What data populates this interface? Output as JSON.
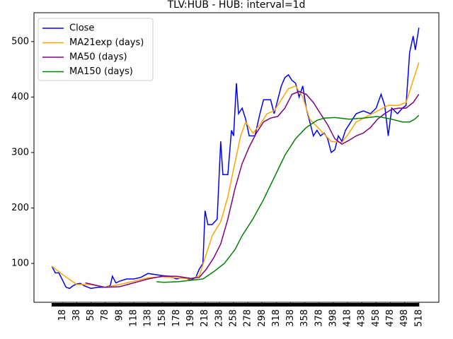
{
  "chart_data": {
    "type": "line",
    "title": "TLV:HUB - HUB: interval=1d",
    "xlim": [
      -22,
      546
    ],
    "ylim": [
      30,
      552
    ],
    "xticks": [
      18,
      38,
      58,
      78,
      98,
      118,
      138,
      158,
      178,
      198,
      218,
      238,
      258,
      278,
      298,
      318,
      338,
      358,
      378,
      398,
      418,
      438,
      458,
      478,
      498,
      518
    ],
    "yticks": [
      100,
      200,
      300,
      400,
      500
    ],
    "grid": false,
    "legend": "upper left",
    "series": [
      {
        "name": "Close",
        "color": "#0000ff",
        "x": [
          3,
          8,
          13,
          18,
          23,
          28,
          33,
          38,
          43,
          48,
          58,
          68,
          78,
          85,
          88,
          93,
          98,
          108,
          118,
          128,
          138,
          148,
          158,
          168,
          178,
          188,
          198,
          205,
          210,
          215,
          218,
          222,
          228,
          235,
          240,
          243,
          250,
          255,
          258,
          262,
          265,
          270,
          275,
          280,
          288,
          295,
          300,
          310,
          315,
          320,
          325,
          330,
          335,
          340,
          345,
          350,
          355,
          360,
          365,
          370,
          375,
          380,
          385,
          390,
          395,
          400,
          405,
          410,
          415,
          425,
          430,
          440,
          450,
          458,
          465,
          470,
          475,
          480,
          488,
          495,
          500,
          505,
          510,
          513,
          518
        ],
        "values": [
          95,
          83,
          83,
          70,
          57,
          55,
          60,
          63,
          64,
          60,
          55,
          57,
          57,
          60,
          77,
          65,
          68,
          72,
          72,
          75,
          82,
          80,
          78,
          77,
          72,
          75,
          70,
          75,
          90,
          100,
          195,
          170,
          170,
          180,
          320,
          260,
          260,
          340,
          330,
          425,
          370,
          380,
          360,
          330,
          330,
          370,
          395,
          395,
          370,
          395,
          420,
          435,
          440,
          430,
          425,
          400,
          420,
          380,
          355,
          330,
          340,
          330,
          335,
          325,
          300,
          305,
          330,
          320,
          340,
          360,
          370,
          375,
          370,
          380,
          405,
          385,
          330,
          380,
          370,
          380,
          385,
          480,
          510,
          485,
          525
        ]
      },
      {
        "name": "MA21exp (days)",
        "color": "#ffa500",
        "x": [
          3,
          18,
          38,
          58,
          78,
          98,
          118,
          138,
          158,
          178,
          198,
          210,
          218,
          228,
          240,
          250,
          258,
          268,
          275,
          285,
          295,
          305,
          315,
          325,
          335,
          345,
          355,
          365,
          380,
          395,
          410,
          420,
          430,
          445,
          460,
          475,
          490,
          500,
          510,
          518
        ],
        "values": [
          95,
          80,
          62,
          62,
          57,
          62,
          68,
          74,
          76,
          74,
          72,
          78,
          110,
          150,
          175,
          220,
          270,
          330,
          355,
          335,
          350,
          370,
          375,
          395,
          415,
          420,
          400,
          360,
          340,
          320,
          318,
          335,
          355,
          365,
          375,
          385,
          385,
          390,
          430,
          462
        ]
      },
      {
        "name": "MA50 (days)",
        "color": "#800080",
        "x": [
          50,
          60,
          78,
          98,
          118,
          138,
          158,
          178,
          198,
          210,
          220,
          230,
          240,
          250,
          260,
          270,
          280,
          290,
          300,
          310,
          320,
          330,
          340,
          350,
          360,
          370,
          380,
          390,
          400,
          410,
          420,
          430,
          440,
          450,
          460,
          470,
          480,
          490,
          500,
          510,
          518
        ],
        "values": [
          65,
          62,
          57,
          58,
          65,
          72,
          77,
          77,
          73,
          75,
          90,
          110,
          135,
          180,
          235,
          280,
          310,
          335,
          355,
          362,
          365,
          380,
          405,
          410,
          405,
          390,
          370,
          350,
          325,
          315,
          322,
          330,
          335,
          345,
          360,
          370,
          378,
          380,
          380,
          390,
          405
        ]
      },
      {
        "name": "MA150 (days)",
        "color": "#008000",
        "x": [
          150,
          160,
          180,
          200,
          215,
          230,
          245,
          260,
          270,
          285,
          300,
          315,
          330,
          345,
          360,
          375,
          385,
          400,
          420,
          440,
          460,
          480,
          495,
          505,
          512,
          518
        ],
        "values": [
          67,
          66,
          67,
          70,
          72,
          85,
          100,
          125,
          150,
          180,
          215,
          255,
          295,
          325,
          345,
          358,
          362,
          363,
          360,
          362,
          365,
          360,
          355,
          355,
          360,
          367
        ]
      }
    ]
  }
}
